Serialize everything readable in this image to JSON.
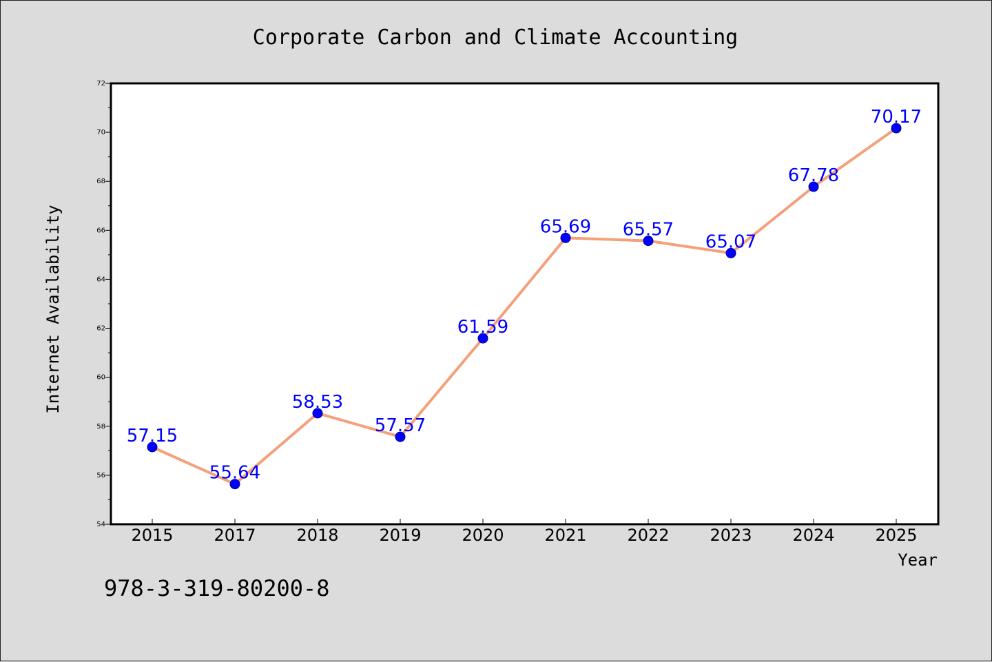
{
  "chart_data": {
    "type": "line",
    "title": "Corporate Carbon and Climate Accounting",
    "xlabel": "Year",
    "ylabel": "Internet Availability",
    "categories": [
      "2015",
      "2017",
      "2018",
      "2019",
      "2020",
      "2021",
      "2022",
      "2023",
      "2024",
      "2025"
    ],
    "series": [
      {
        "values": [
          57.15,
          55.64,
          58.53,
          57.57,
          61.59,
          65.69,
          65.57,
          65.07,
          67.78,
          70.17
        ],
        "labels": [
          "57.15",
          "55.64",
          "58.53",
          "57.57",
          "61.59",
          "65.69",
          "65.57",
          "65.07",
          "67.78",
          "70.17"
        ]
      }
    ],
    "ylim": [
      54,
      72
    ],
    "yticks": [
      "54",
      "56",
      "58",
      "60",
      "62",
      "64",
      "66",
      "68",
      "70",
      "72"
    ],
    "grid": false,
    "line_color": "#f4a07a",
    "marker_color": "#0000ff",
    "label_color": "#0000ff"
  },
  "footer": {
    "isbn": "978-3-319-80200-8"
  }
}
